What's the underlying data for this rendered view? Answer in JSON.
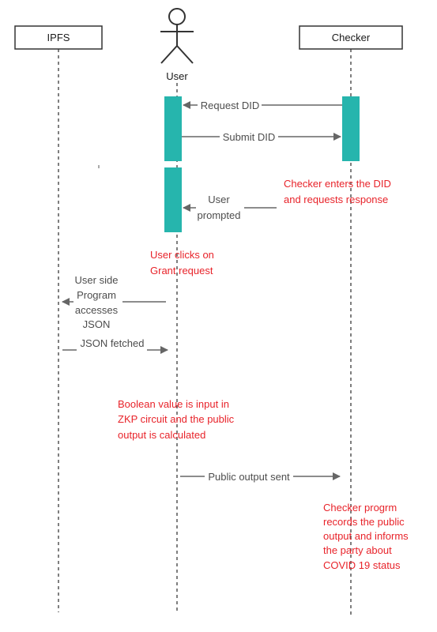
{
  "participants": {
    "ipfs": "IPFS",
    "user": "User",
    "checker": "Checker"
  },
  "messages": {
    "request_did": "Request DID",
    "submit_did": "Submit DID",
    "user_prompted": [
      "User",
      "prompted"
    ],
    "user_side_program": [
      "User side",
      "Program",
      "accesses",
      "JSON"
    ],
    "json_fetched": "JSON fetched",
    "public_output_sent": "Public output sent"
  },
  "notes": {
    "checker_enters": [
      "Checker enters the DID",
      "and requests response"
    ],
    "user_clicks": [
      "User clicks on",
      "Grant request"
    ],
    "boolean_value": [
      "Boolean value is input in",
      "ZKP circuit and the public",
      "output is calculated"
    ],
    "checker_program": [
      "Checker progrm",
      "records the public",
      "output and informs",
      "the party about",
      "COVID 19 status"
    ]
  },
  "colors": {
    "activation": "#26b5ad",
    "note_text": "#e8232a",
    "line": "#666666",
    "text": "#4d4d4d"
  }
}
